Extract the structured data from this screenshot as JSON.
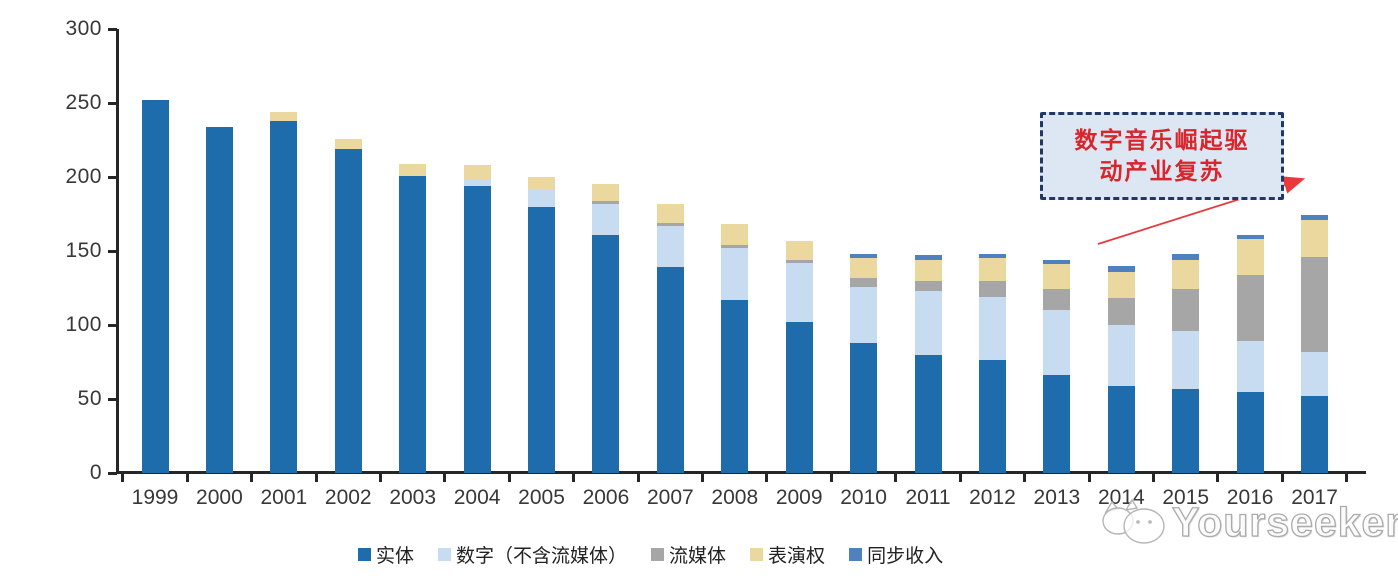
{
  "chart_data": {
    "type": "bar",
    "stacked": true,
    "title": "",
    "xlabel": "",
    "ylabel": "",
    "ylim": [
      0,
      300
    ],
    "yticks": [
      0,
      50,
      100,
      150,
      200,
      250,
      300
    ],
    "grid": false,
    "legend_position": "bottom",
    "categories": [
      "1999",
      "2000",
      "2001",
      "2002",
      "2003",
      "2004",
      "2005",
      "2006",
      "2007",
      "2008",
      "2009",
      "2010",
      "2011",
      "2012",
      "2013",
      "2014",
      "2015",
      "2016",
      "2017"
    ],
    "series": [
      {
        "name": "实体",
        "color": "#1F6CAC",
        "values": [
          252,
          234,
          238,
          219,
          201,
          194,
          180,
          161,
          139,
          117,
          102,
          88,
          80,
          76,
          66,
          59,
          57,
          55,
          52
        ]
      },
      {
        "name": "数字（不含流媒体）",
        "color": "#C7DBF1",
        "values": [
          0,
          0,
          0,
          0,
          0,
          4,
          11,
          21,
          28,
          35,
          40,
          38,
          43,
          43,
          44,
          41,
          39,
          34,
          30
        ]
      },
      {
        "name": "流媒体",
        "color": "#A6A6A6",
        "values": [
          0,
          0,
          0,
          0,
          0,
          0,
          0,
          2,
          2,
          2,
          2,
          6,
          7,
          11,
          14,
          18,
          28,
          45,
          64
        ]
      },
      {
        "name": "表演权",
        "color": "#EBD89E",
        "values": [
          0,
          0,
          6,
          7,
          8,
          10,
          9,
          11,
          13,
          14,
          13,
          13,
          14,
          15,
          17,
          18,
          20,
          24,
          25
        ]
      },
      {
        "name": "同步收入",
        "color": "#4E81BD",
        "values": [
          0,
          0,
          0,
          0,
          0,
          0,
          0,
          0,
          0,
          0,
          0,
          3,
          3,
          3,
          3,
          4,
          4,
          3,
          3
        ]
      }
    ]
  },
  "annotation": {
    "line1": "数字音乐崛起驱",
    "line2": "动产业复苏",
    "text_color": "#D9252C",
    "box_fill": "#DCE7F3",
    "box_border": "#1F3864",
    "arrow_color": "#E8393D"
  },
  "watermark": {
    "text": "Yourseeker"
  }
}
